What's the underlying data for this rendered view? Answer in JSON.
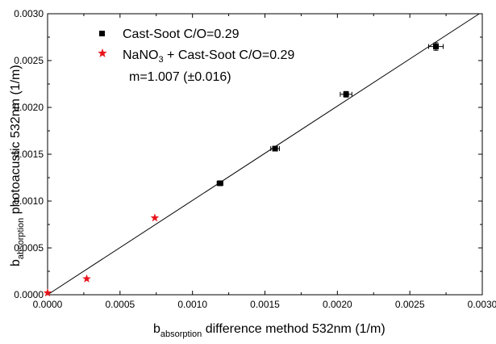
{
  "chart_data": {
    "type": "scatter",
    "xlabel": {
      "main": "b",
      "sub": "absorption",
      "rest": " difference method 532nm (1/m)"
    },
    "ylabel": {
      "main": "b",
      "sub": "absorption",
      "rest": " photoacustic 532nm (1/m)"
    },
    "xlim": [
      0,
      0.003
    ],
    "ylim": [
      0,
      0.003
    ],
    "x_ticks": [
      "0.0000",
      "0.0005",
      "0.0010",
      "0.0015",
      "0.0020",
      "0.0025",
      "0.0030"
    ],
    "y_ticks": [
      "0.0000",
      "0.0005",
      "0.0010",
      "0.0015",
      "0.0020",
      "0.0025",
      "0.0030"
    ],
    "grid": false,
    "legend_position": "top-left",
    "series": [
      {
        "name": "Cast-Soot C/O=0.29",
        "marker": "square",
        "color": "#000000",
        "points": [
          {
            "x": 0.00119,
            "y": 0.00119,
            "xerr": 2e-05,
            "yerr": 2e-05
          },
          {
            "x": 0.00157,
            "y": 0.00156,
            "xerr": 3e-05,
            "yerr": 2e-05
          },
          {
            "x": 0.00206,
            "y": 0.00214,
            "xerr": 4e-05,
            "yerr": 3e-05
          },
          {
            "x": 0.00268,
            "y": 0.00265,
            "xerr": 5e-05,
            "yerr": 4e-05
          }
        ]
      },
      {
        "name_parts": {
          "a": "NaNO",
          "sub": "3",
          "b": " + Cast-Soot C/O=0.29"
        },
        "marker": "star",
        "color": "#e8141b",
        "points": [
          {
            "x": 0.0,
            "y": 2e-05
          },
          {
            "x": 0.00027,
            "y": 0.00017
          },
          {
            "x": 0.00074,
            "y": 0.00082
          }
        ]
      }
    ],
    "fit_line": {
      "slope": 1.007,
      "intercept": 0.0,
      "x_range": [
        0,
        0.003
      ]
    },
    "annotation": "m=1.007 (±0.016)"
  }
}
